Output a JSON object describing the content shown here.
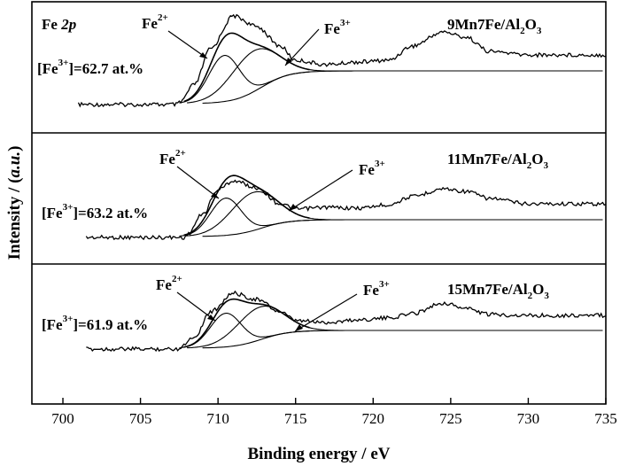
{
  "chart_data": {
    "type": "line",
    "xlabel": "Binding energy / eV",
    "ylabel": "Intensity / (a.u.)",
    "xlim": [
      698,
      735
    ],
    "x_ticks": [
      700,
      705,
      710,
      715,
      720,
      725,
      730,
      735
    ],
    "y_ticks": [],
    "grid": false,
    "panels": [
      {
        "sample_label": "9Mn7Fe/Al2O3",
        "sample_main": "9Mn7Fe/Al",
        "sample_sub": "2",
        "sample_end": "O",
        "sample_sub2": "3",
        "region_label": "Fe 2p",
        "region_main": "Fe ",
        "region_italic": "2p",
        "fe2_label": "Fe2+",
        "fe3_label": "Fe3+",
        "ratio_label": "[Fe3+]=62.7 at.%",
        "ratio_value_text": "=62.7 at.%",
        "ratio_value": 62.7,
        "fe2_peak": 710.4,
        "fe3_peak": 712.3
      },
      {
        "sample_label": "11Mn7Fe/Al2O3",
        "sample_main": "11Mn7Fe/Al",
        "sample_sub": "2",
        "sample_end": "O",
        "sample_sub2": "3",
        "fe2_label": "Fe2+",
        "fe3_label": "Fe3+",
        "ratio_label": "[Fe3+]=63.2 at.%",
        "ratio_value_text": "=63.2 at.%",
        "ratio_value": 63.2,
        "fe2_peak": 710.5,
        "fe3_peak": 712.3
      },
      {
        "sample_label": "15Mn7Fe/Al2O3",
        "sample_main": "15Mn7Fe/Al",
        "sample_sub": "2",
        "sample_end": "O",
        "sample_sub2": "3",
        "fe2_label": "Fe2+",
        "fe3_label": "Fe3+",
        "ratio_label": "[Fe3+]=61.9 at.%",
        "ratio_value_text": "=61.9 at.%",
        "ratio_value": 61.9,
        "fe2_peak": 710.5,
        "fe3_peak": 712.7
      }
    ],
    "labels": {
      "fe": "Fe",
      "two_plus": "2+",
      "three_plus": "3+",
      "bracket_open": "[Fe",
      "bracket_close": "]",
      "ylabel_main": "Intensity / (",
      "ylabel_italic": "a.u.",
      "ylabel_end": ")"
    }
  }
}
